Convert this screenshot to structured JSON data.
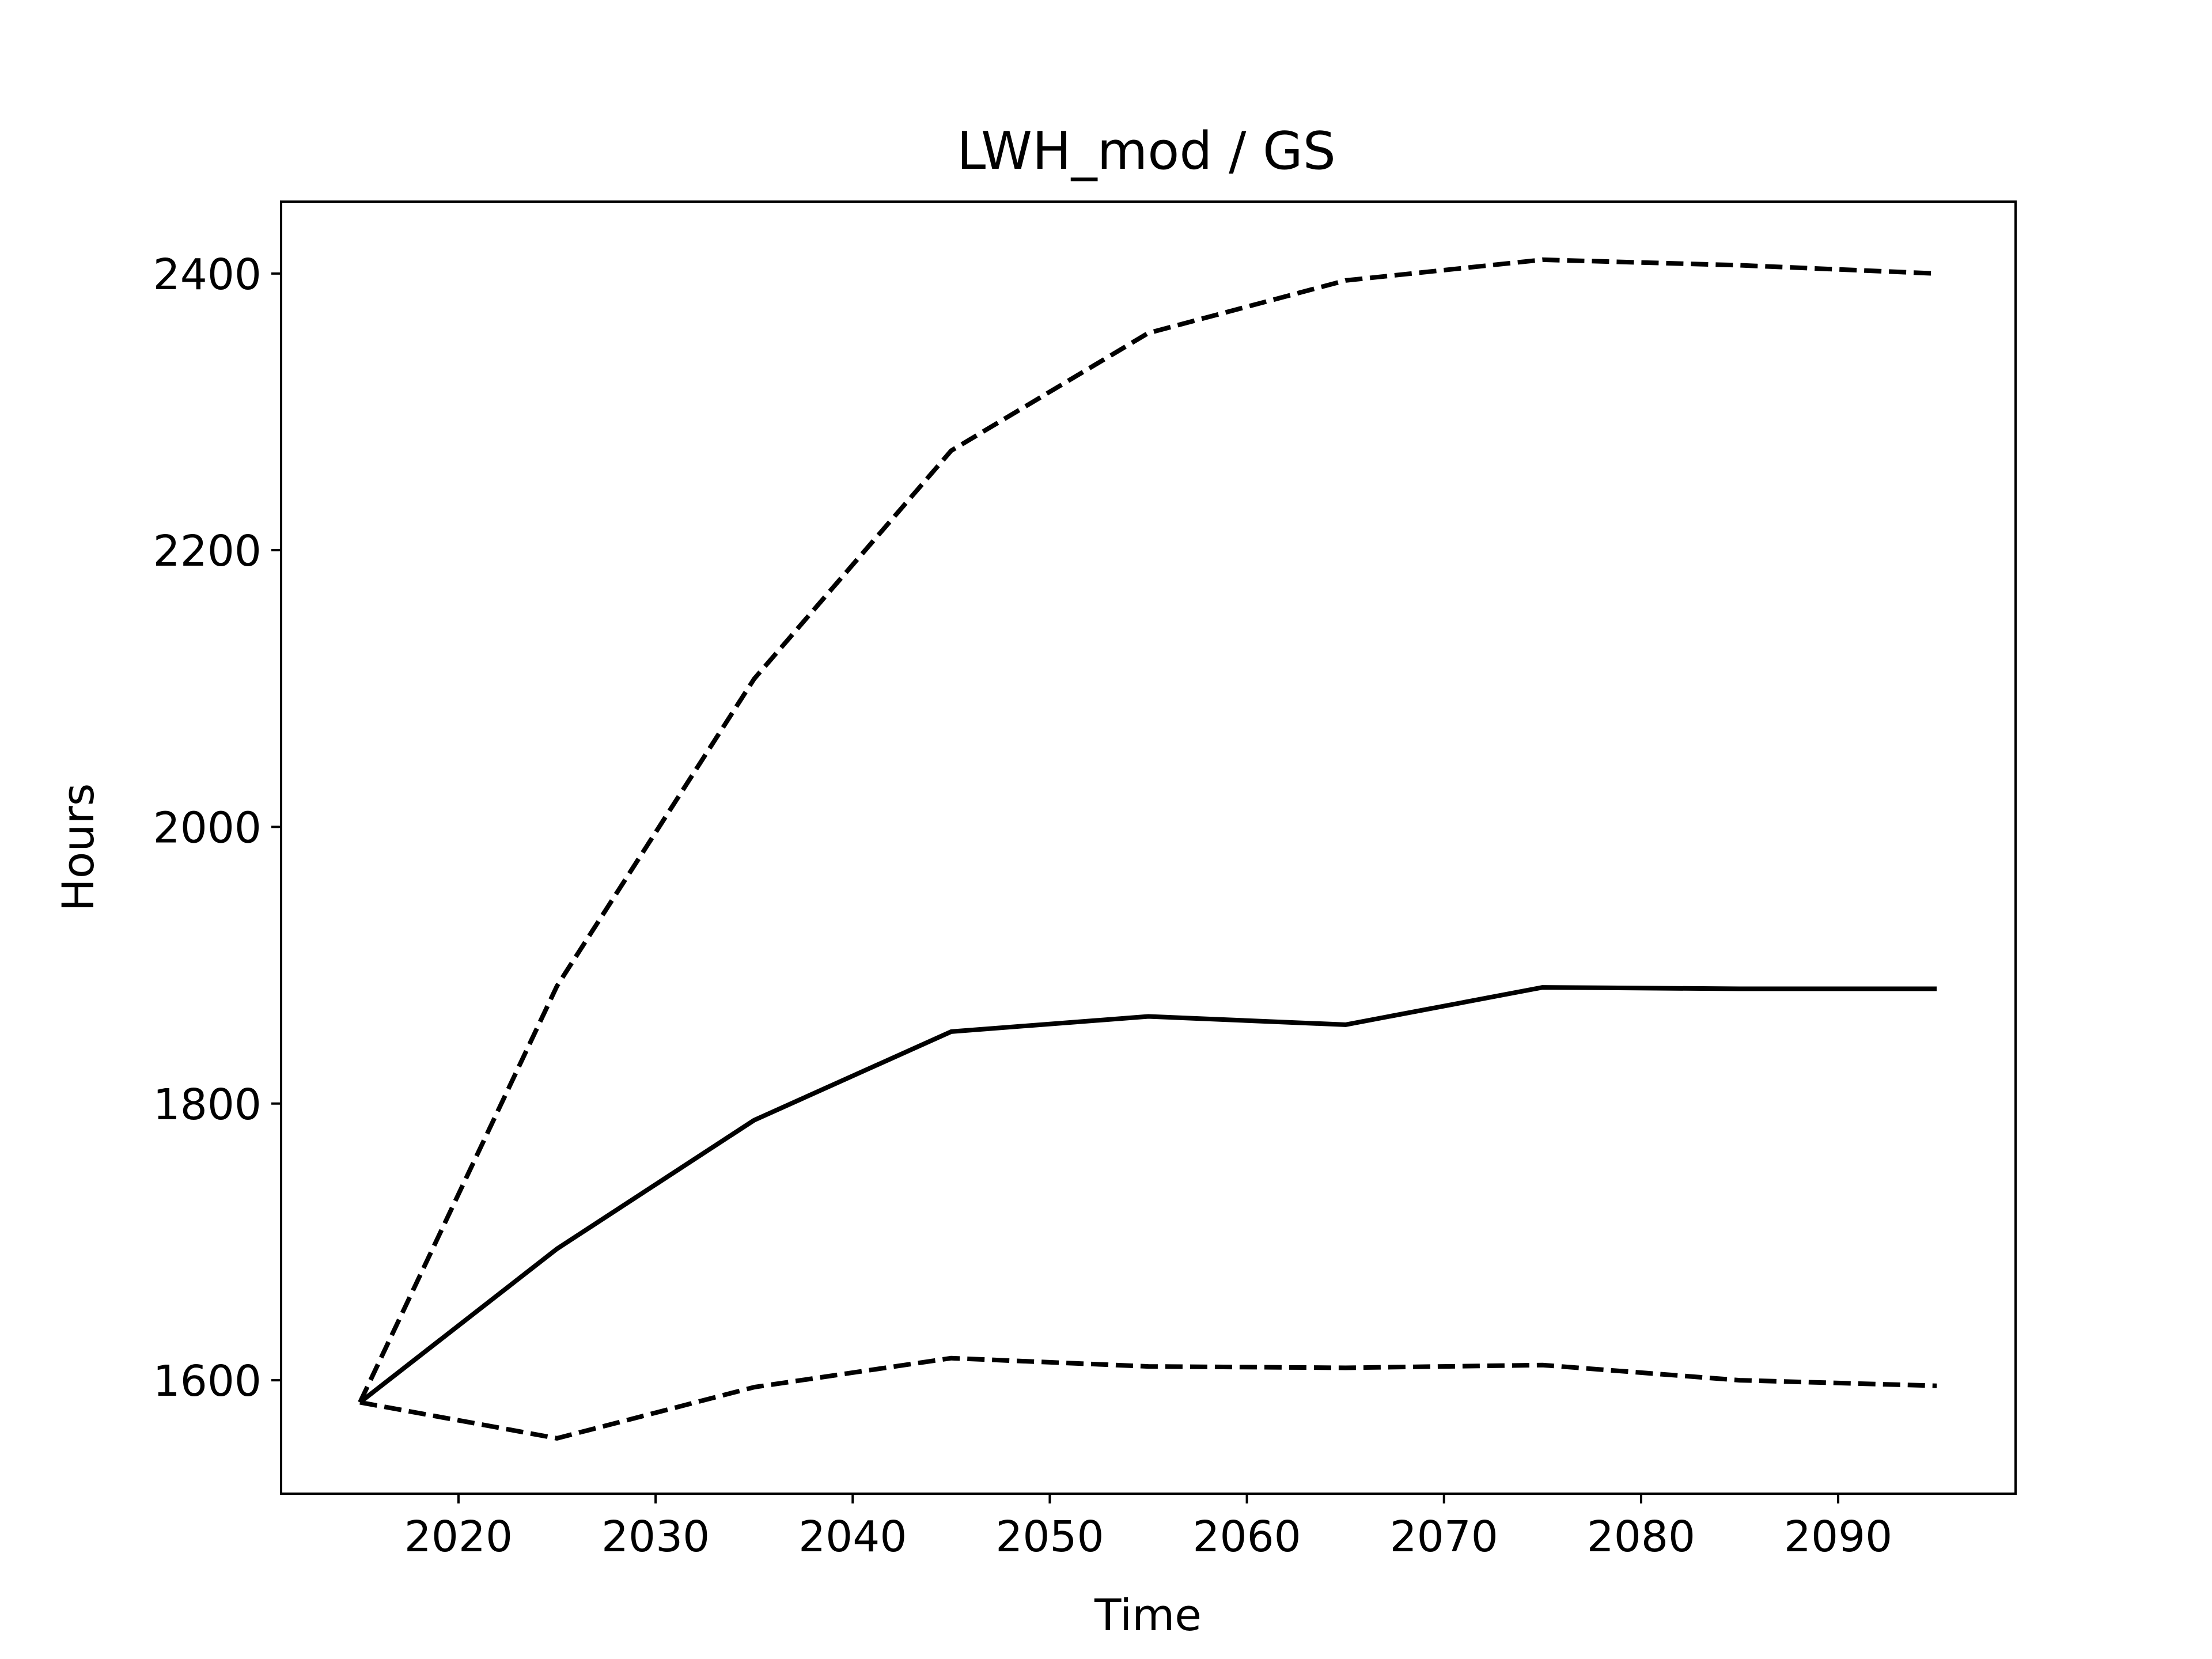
{
  "chart_data": {
    "type": "line",
    "title": "LWH_mod / GS",
    "xlabel": "Time",
    "ylabel": "Hours",
    "x": [
      2015,
      2025,
      2035,
      2045,
      2055,
      2065,
      2075,
      2085,
      2095
    ],
    "xlim": [
      2011,
      2099
    ],
    "ylim": [
      1518,
      2452
    ],
    "xticks": [
      2020,
      2030,
      2040,
      2050,
      2060,
      2070,
      2080,
      2090
    ],
    "yticks": [
      1600,
      1800,
      2000,
      2200,
      2400
    ],
    "grid": false,
    "series": [
      {
        "values": [
          1584,
          1885,
          2107,
          2272,
          2357,
          2395,
          2410,
          2406,
          2400
        ],
        "style": "dashed",
        "color": "#000000"
      },
      {
        "values": [
          1584,
          1695,
          1788,
          1852,
          1863,
          1857,
          1884,
          1883,
          1883
        ],
        "style": "solid",
        "color": "#000000"
      },
      {
        "values": [
          1584,
          1558,
          1595,
          1616,
          1610,
          1609,
          1611,
          1600,
          1596
        ],
        "style": "dashed",
        "color": "#000000"
      }
    ]
  }
}
